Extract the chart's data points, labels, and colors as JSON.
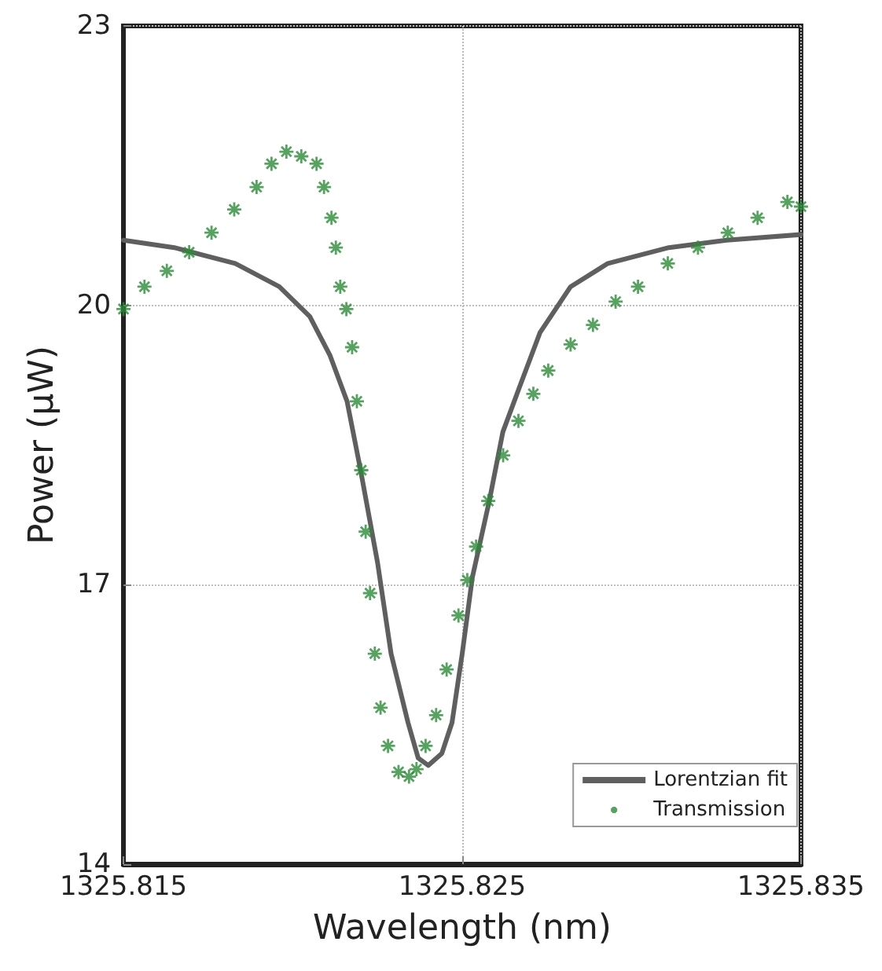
{
  "chart_data": {
    "type": "line",
    "xlabel": "Wavelength (nm)",
    "ylabel": "Power (μW)",
    "xlim": [
      1325.815,
      1325.835
    ],
    "xticks": [
      1325.815,
      1325.825,
      1325.835
    ],
    "ylim": [
      14,
      23
    ],
    "yticks": [
      14,
      17,
      20,
      23
    ],
    "grid": true,
    "legend": "bottom right",
    "series": [
      {
        "name": "Lorentzian fit",
        "color": "#5f5f5f",
        "marker": "none",
        "line_style": "solid",
        "x": [
          1325.815,
          1325.8165,
          1325.8183,
          1325.8196,
          1325.8205,
          1325.8211,
          1325.8216,
          1325.822,
          1325.8225,
          1325.8229,
          1325.8234,
          1325.8237,
          1325.824,
          1325.8244,
          1325.8247,
          1325.825,
          1325.8253,
          1325.8258,
          1325.8262,
          1325.8267,
          1325.8273,
          1325.8282,
          1325.8293,
          1325.8311,
          1325.8328,
          1325.835
        ],
        "values": [
          20.7,
          20.62,
          20.45,
          20.2,
          19.88,
          19.46,
          18.97,
          18.23,
          17.24,
          16.26,
          15.52,
          15.14,
          15.06,
          15.19,
          15.52,
          16.26,
          17.08,
          17.9,
          18.64,
          19.13,
          19.71,
          20.2,
          20.45,
          20.62,
          20.7,
          20.76
        ]
      },
      {
        "name": "Transmission",
        "type": "scatter",
        "color": "#2e8b3a",
        "marker": "cross",
        "x": [
          1325.815,
          1325.81562,
          1325.81628,
          1325.81694,
          1325.8176,
          1325.81827,
          1325.81893,
          1325.81937,
          1325.81981,
          1325.82025,
          1325.8207,
          1325.82092,
          1325.82114,
          1325.82127,
          1325.8214,
          1325.82158,
          1325.82175,
          1325.82189,
          1325.82202,
          1325.82215,
          1325.82228,
          1325.82242,
          1325.82259,
          1325.82281,
          1325.82312,
          1325.82343,
          1325.82365,
          1325.82392,
          1325.82423,
          1325.82454,
          1325.82489,
          1325.82515,
          1325.82541,
          1325.82577,
          1325.82621,
          1325.82666,
          1325.8271,
          1325.82754,
          1325.8282,
          1325.82886,
          1325.82953,
          1325.83019,
          1325.83107,
          1325.83196,
          1325.83284,
          1325.83372,
          1325.8346,
          1325.835
        ],
        "values": [
          19.96,
          20.2,
          20.37,
          20.57,
          20.78,
          21.03,
          21.27,
          21.52,
          21.65,
          21.6,
          21.52,
          21.27,
          20.94,
          20.62,
          20.2,
          19.96,
          19.55,
          18.97,
          18.23,
          17.57,
          16.91,
          16.26,
          15.68,
          15.27,
          14.99,
          14.94,
          15.02,
          15.27,
          15.6,
          16.09,
          16.67,
          17.05,
          17.41,
          17.9,
          18.39,
          18.76,
          19.05,
          19.3,
          19.58,
          19.79,
          20.04,
          20.2,
          20.45,
          20.62,
          20.78,
          20.94,
          21.11,
          21.06
        ]
      }
    ]
  }
}
